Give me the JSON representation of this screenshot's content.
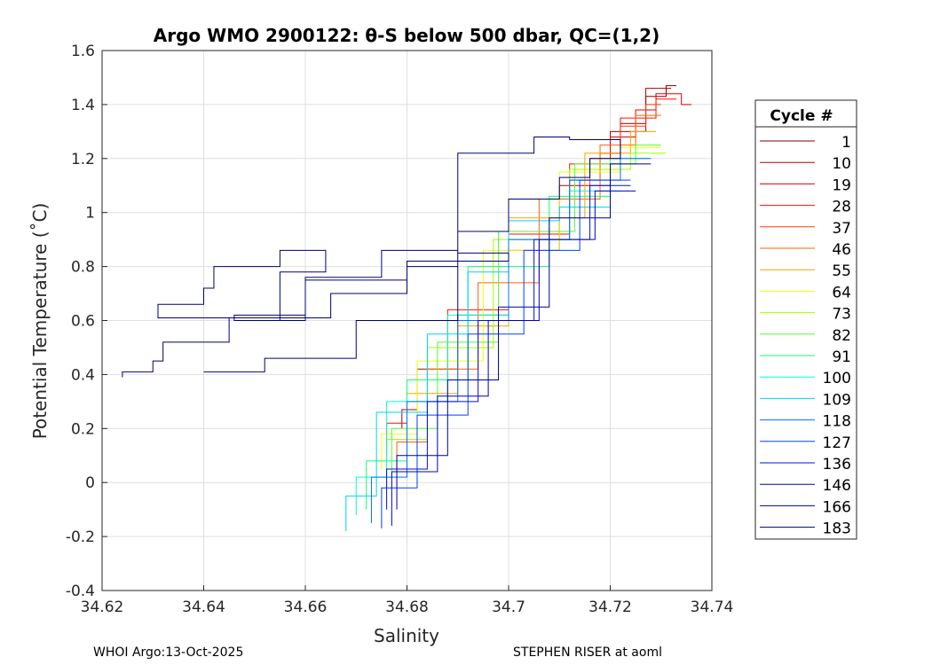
{
  "chart_data": {
    "type": "line",
    "title": "Argo WMO 2900122: θ-S below 500 dbar,  QC=(1,2)",
    "xlabel": "Salinity",
    "ylabel": "Potential Temperature (˚C)",
    "xlim": [
      34.62,
      34.74
    ],
    "ylim": [
      -0.4,
      1.6
    ],
    "grid": true,
    "xticks": [
      34.62,
      34.64,
      34.66,
      34.68,
      34.7,
      34.72,
      34.74
    ],
    "xtick_labels": [
      "34.62",
      "34.64",
      "34.66",
      "34.68",
      "34.7",
      "34.72",
      "34.74"
    ],
    "yticks": [
      -0.4,
      -0.2,
      0,
      0.2,
      0.4,
      0.6,
      0.8,
      1,
      1.2,
      1.4,
      1.6
    ],
    "ytick_labels": [
      "-0.4",
      "-0.2",
      "0",
      "0.2",
      "0.4",
      "0.6",
      "0.8",
      "1",
      "1.2",
      "1.4",
      "1.6"
    ],
    "legend": {
      "title": "Cycle #",
      "placement": "right-outside",
      "entries": [
        "1",
        "10",
        "19",
        "28",
        "37",
        "46",
        "55",
        "64",
        "73",
        "82",
        "91",
        "100",
        "109",
        "118",
        "127",
        "136",
        "146",
        "166",
        "183"
      ]
    },
    "series": [
      {
        "name": "1",
        "color": "#800000",
        "points": [
          [
            34.712,
            1.0
          ],
          [
            34.718,
            1.12
          ],
          [
            34.722,
            1.22
          ],
          [
            34.727,
            1.33
          ],
          [
            34.731,
            1.43
          ],
          [
            34.733,
            1.47
          ]
        ]
      },
      {
        "name": "10",
        "color": "#b00000",
        "points": [
          [
            34.679,
            0.2
          ],
          [
            34.682,
            0.27
          ],
          [
            34.69,
            0.42
          ],
          [
            34.7,
            0.62
          ],
          [
            34.71,
            0.86
          ],
          [
            34.72,
            1.1
          ],
          [
            34.727,
            1.3
          ],
          [
            34.732,
            1.46
          ]
        ]
      },
      {
        "name": "19",
        "color": "#e00000",
        "points": [
          [
            34.72,
            1.12
          ],
          [
            34.725,
            1.28
          ],
          [
            34.729,
            1.38
          ],
          [
            34.734,
            1.44
          ],
          [
            34.736,
            1.4
          ]
        ]
      },
      {
        "name": "28",
        "color": "#ff1000",
        "points": [
          [
            34.676,
            0.1
          ],
          [
            34.68,
            0.22
          ],
          [
            34.688,
            0.38
          ],
          [
            34.7,
            0.64
          ],
          [
            34.712,
            0.92
          ],
          [
            34.722,
            1.18
          ],
          [
            34.729,
            1.35
          ],
          [
            34.733,
            1.42
          ]
        ]
      },
      {
        "name": "37",
        "color": "#ff3800",
        "points": [
          [
            34.716,
            1.05
          ],
          [
            34.722,
            1.2
          ],
          [
            34.727,
            1.32
          ],
          [
            34.73,
            1.4
          ]
        ]
      },
      {
        "name": "46",
        "color": "#ff6000",
        "points": [
          [
            34.678,
            0.05
          ],
          [
            34.684,
            0.15
          ],
          [
            34.694,
            0.42
          ],
          [
            34.706,
            0.74
          ],
          [
            34.718,
            1.05
          ],
          [
            34.725,
            1.25
          ],
          [
            34.73,
            1.36
          ]
        ]
      },
      {
        "name": "55",
        "color": "#ffa000",
        "points": [
          [
            34.68,
            0.1
          ],
          [
            34.69,
            0.33
          ],
          [
            34.7,
            0.58
          ],
          [
            34.715,
            0.98
          ],
          [
            34.724,
            1.22
          ],
          [
            34.729,
            1.3
          ]
        ]
      },
      {
        "name": "64",
        "color": "#f0ff10",
        "points": [
          [
            34.675,
            0.05
          ],
          [
            34.682,
            0.18
          ],
          [
            34.695,
            0.45
          ],
          [
            34.71,
            0.86
          ],
          [
            34.722,
            1.15
          ],
          [
            34.73,
            1.24
          ]
        ]
      },
      {
        "name": "73",
        "color": "#a0ff00",
        "points": [
          [
            34.676,
            -0.02
          ],
          [
            34.684,
            0.16
          ],
          [
            34.697,
            0.5
          ],
          [
            34.712,
            0.9
          ],
          [
            34.724,
            1.16
          ],
          [
            34.731,
            1.22
          ]
        ]
      },
      {
        "name": "82",
        "color": "#50ff30",
        "points": [
          [
            34.677,
            0.02
          ],
          [
            34.686,
            0.2
          ],
          [
            34.698,
            0.52
          ],
          [
            34.713,
            0.93
          ],
          [
            34.725,
            1.18
          ],
          [
            34.73,
            1.25
          ]
        ]
      },
      {
        "name": "91",
        "color": "#10ff70",
        "points": [
          [
            34.672,
            -0.1
          ],
          [
            34.68,
            0.08
          ],
          [
            34.692,
            0.38
          ],
          [
            34.708,
            0.8
          ],
          [
            34.72,
            1.06
          ],
          [
            34.728,
            1.2
          ]
        ]
      },
      {
        "name": "100",
        "color": "#00ffd0",
        "points": [
          [
            34.67,
            -0.12
          ],
          [
            34.676,
            0.02
          ],
          [
            34.688,
            0.3
          ],
          [
            34.7,
            0.62
          ],
          [
            34.712,
            0.9
          ],
          [
            34.722,
            1.08
          ]
        ]
      },
      {
        "name": "109",
        "color": "#00d0ff",
        "points": [
          [
            34.668,
            -0.18
          ],
          [
            34.674,
            -0.05
          ],
          [
            34.684,
            0.26
          ],
          [
            34.692,
            0.55
          ],
          [
            34.7,
            0.78
          ],
          [
            34.71,
            0.97
          ],
          [
            34.72,
            1.02
          ]
        ]
      },
      {
        "name": "118",
        "color": "#0070ff",
        "points": [
          [
            34.673,
            -0.15
          ],
          [
            34.68,
            0.02
          ],
          [
            34.69,
            0.3
          ],
          [
            34.7,
            0.6
          ],
          [
            34.712,
            0.9
          ],
          [
            34.722,
            1.12
          ],
          [
            34.728,
            1.2
          ]
        ]
      },
      {
        "name": "127",
        "color": "#0040ff",
        "points": [
          [
            34.675,
            -0.17
          ],
          [
            34.682,
            -0.02
          ],
          [
            34.692,
            0.25
          ],
          [
            34.703,
            0.55
          ],
          [
            34.714,
            0.86
          ],
          [
            34.724,
            1.12
          ]
        ]
      },
      {
        "name": "136",
        "color": "#0010e0",
        "points": [
          [
            34.676,
            -0.1
          ],
          [
            34.684,
            0.05
          ],
          [
            34.694,
            0.3
          ],
          [
            34.705,
            0.6
          ],
          [
            34.716,
            0.9
          ],
          [
            34.724,
            1.1
          ]
        ]
      },
      {
        "name": "146",
        "color": "#0000c0",
        "points": [
          [
            34.677,
            -0.16
          ],
          [
            34.686,
            0.04
          ],
          [
            34.696,
            0.32
          ],
          [
            34.706,
            0.6
          ],
          [
            34.717,
            0.9
          ],
          [
            34.725,
            1.08
          ]
        ]
      },
      {
        "name": "166",
        "color": "#000090",
        "points": [
          [
            34.678,
            -0.1
          ],
          [
            34.688,
            0.1
          ],
          [
            34.698,
            0.38
          ],
          [
            34.708,
            0.65
          ],
          [
            34.72,
            0.98
          ],
          [
            34.728,
            1.18
          ]
        ]
      },
      {
        "name": "183",
        "color": "#000070",
        "points": [
          [
            34.624,
            0.39
          ],
          [
            34.63,
            0.41
          ],
          [
            34.632,
            0.45
          ],
          [
            34.645,
            0.52
          ],
          [
            34.665,
            0.61
          ],
          [
            34.68,
            0.7
          ],
          [
            34.69,
            0.8
          ],
          [
            34.7,
            0.93
          ],
          [
            34.71,
            1.05
          ],
          [
            34.716,
            1.13
          ],
          [
            34.722,
            1.2
          ],
          [
            34.712,
            1.27
          ],
          [
            34.705,
            1.28
          ],
          [
            34.69,
            1.22
          ],
          [
            34.68,
            0.82
          ],
          [
            34.66,
            0.75
          ],
          [
            34.646,
            0.6
          ],
          [
            34.631,
            0.61
          ],
          [
            34.64,
            0.66
          ],
          [
            34.642,
            0.72
          ],
          [
            34.655,
            0.8
          ],
          [
            34.664,
            0.86
          ],
          [
            34.655,
            0.78
          ],
          [
            34.646,
            0.6
          ],
          [
            34.66,
            0.62
          ],
          [
            34.675,
            0.76
          ],
          [
            34.69,
            0.86
          ],
          [
            34.7,
            0.85
          ],
          [
            34.69,
            0.82
          ],
          [
            34.67,
            0.6
          ],
          [
            34.652,
            0.46
          ],
          [
            34.64,
            0.41
          ]
        ]
      }
    ]
  },
  "footer": {
    "left": "WHOI Argo:13-Oct-2025",
    "right": "STEPHEN RISER at aoml"
  }
}
